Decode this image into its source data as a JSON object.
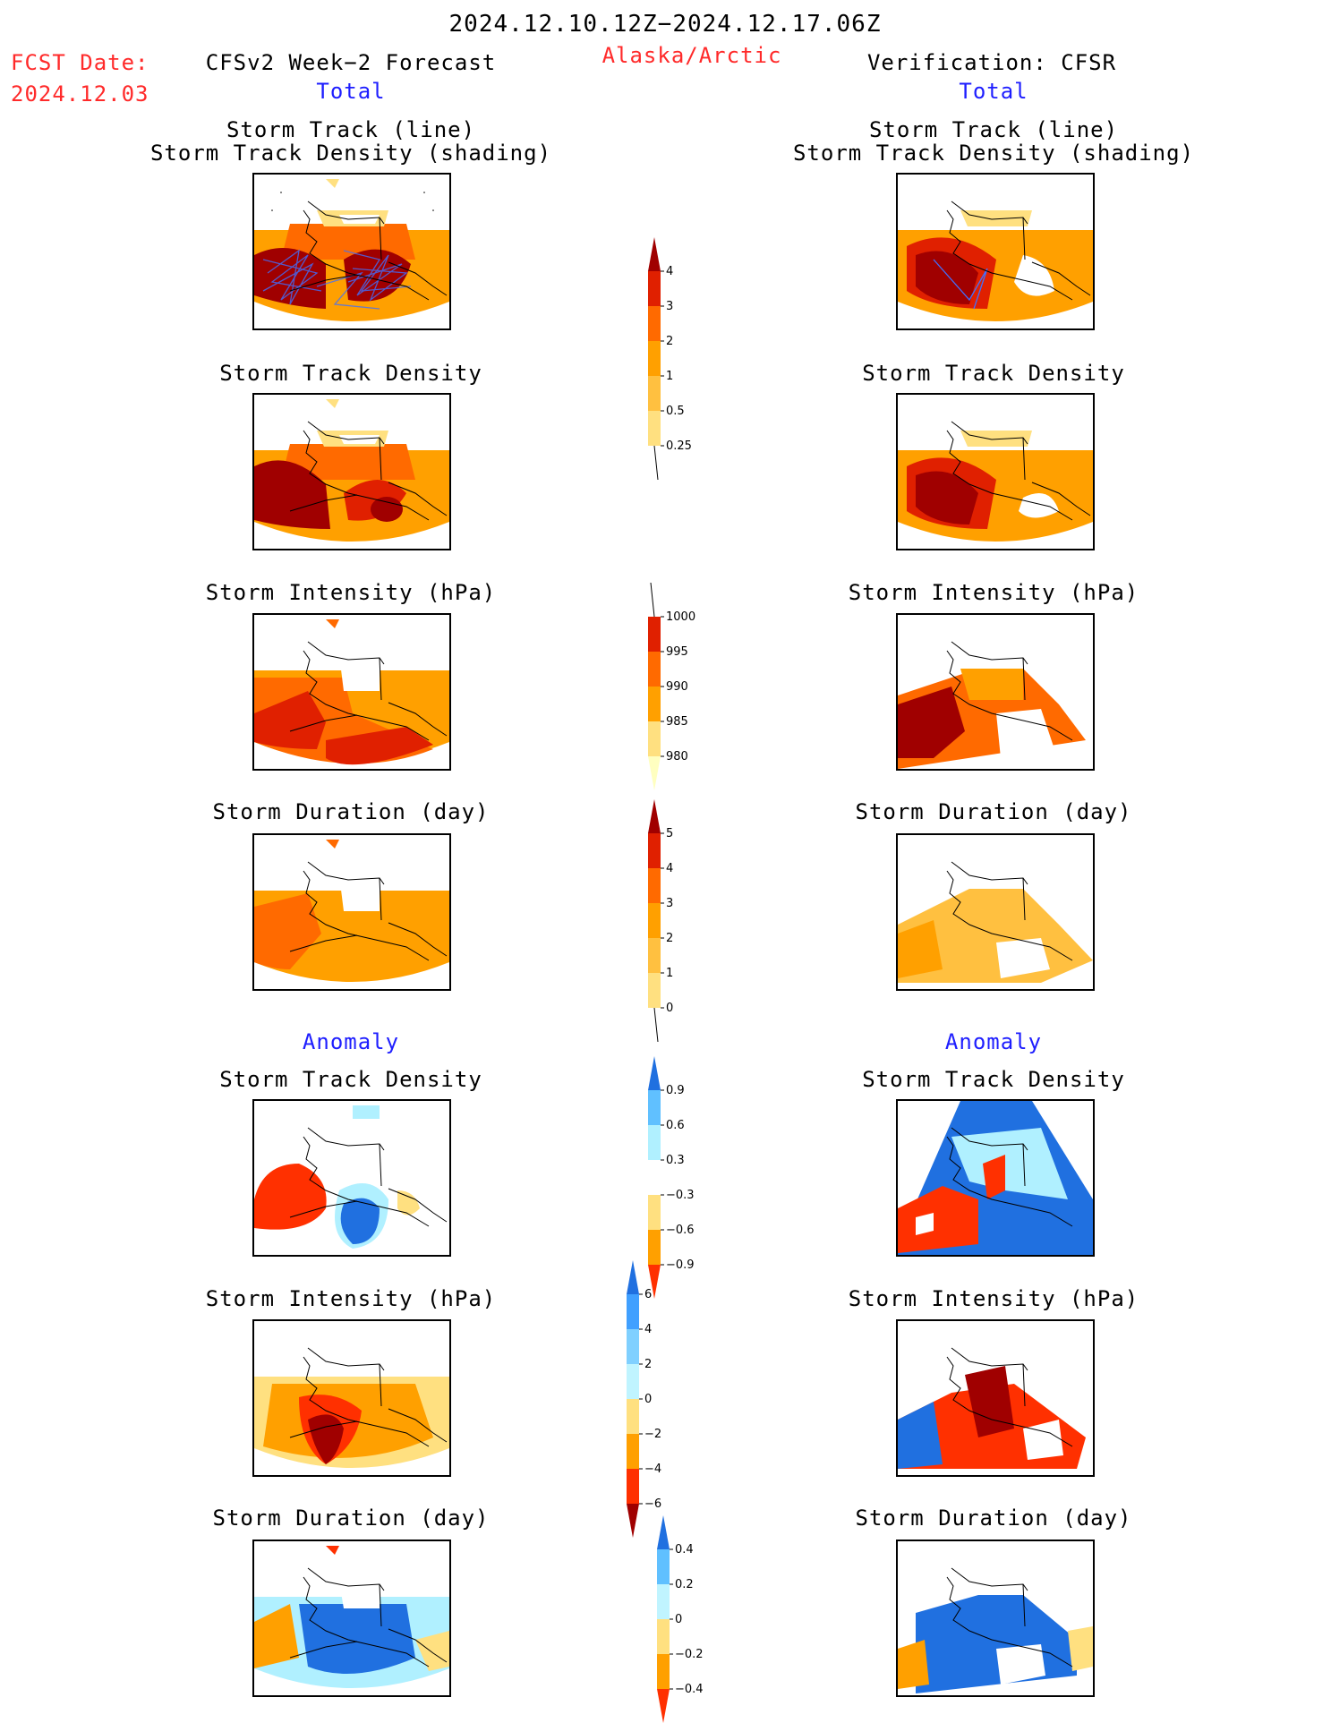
{
  "header": {
    "period": "2024.12.10.12Z−2024.12.17.06Z",
    "fcst_label": "FCST Date:",
    "fcst_date": "2024.12.03",
    "left_title": "CFSv2 Week−2 Forecast",
    "region": "Alaska/Arctic",
    "right_title": "Verification: CFSR",
    "left_total": "Total",
    "right_total": "Total",
    "left_anomaly": "Anomaly",
    "right_anomaly": "Anomaly"
  },
  "panels": {
    "track_line": "Storm Track (line)",
    "track_density_shading": "Storm Track Density (shading)",
    "track_density": "Storm Track Density",
    "intensity": "Storm Intensity (hPa)",
    "duration": "Storm Duration (day)"
  },
  "colorbars": {
    "density_total": {
      "labels": [
        "4",
        "3",
        "2",
        "1",
        "0.5",
        "0.25"
      ],
      "colors": [
        "#ffffc0",
        "#ffe080",
        "#ffc040",
        "#ffa000",
        "#ff6a00",
        "#e02000",
        "#a00000"
      ]
    },
    "intensity_total": {
      "labels": [
        "1000",
        "995",
        "990",
        "985",
        "980"
      ],
      "colors": [
        "#ffffc0",
        "#ffe080",
        "#ffa000",
        "#ff6a00",
        "#e02000",
        "#a00000"
      ]
    },
    "duration_total": {
      "labels": [
        "5",
        "4",
        "3",
        "2",
        "1",
        "0"
      ],
      "colors": [
        "#ffffc0",
        "#ffe080",
        "#ffc040",
        "#ffa000",
        "#ff6a00",
        "#e02000",
        "#a00000"
      ]
    },
    "density_anom": {
      "labels": [
        "0.9",
        "0.6",
        "0.3",
        "−0.3",
        "−0.6",
        "−0.9"
      ],
      "colors": [
        "#ff3000",
        "#ffa000",
        "#ffe080",
        "#ffffff",
        "#b0f0ff",
        "#60c0ff",
        "#2070e0"
      ]
    },
    "intensity_anom": {
      "labels": [
        "6",
        "4",
        "2",
        "0",
        "−2",
        "−4",
        "−6"
      ],
      "colors": [
        "#a00000",
        "#ff3000",
        "#ffa000",
        "#ffe080",
        "#c0f4ff",
        "#80d0ff",
        "#40a0ff",
        "#2070e0"
      ]
    },
    "duration_anom": {
      "labels": [
        "0.4",
        "0.2",
        "0",
        "−0.2",
        "−0.4"
      ],
      "colors": [
        "#ff3000",
        "#ffa000",
        "#ffe080",
        "#c0f4ff",
        "#60c0ff",
        "#2070e0"
      ]
    }
  }
}
